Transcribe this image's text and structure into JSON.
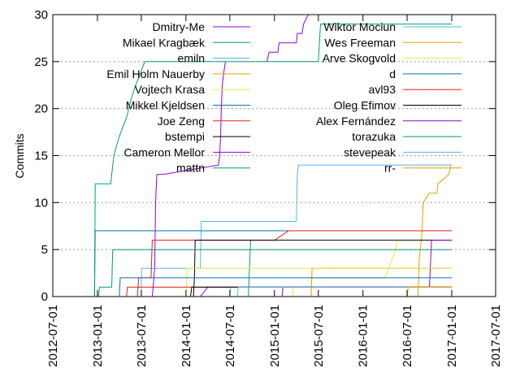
{
  "chart_data": {
    "type": "line",
    "title": "",
    "xlabel": "",
    "ylabel": "Commits",
    "xlim": [
      "2012-07-01",
      "2017-07-01"
    ],
    "ylim": [
      0,
      30
    ],
    "x_ticks": [
      "2012-07-01",
      "2013-01-01",
      "2013-07-01",
      "2014-01-01",
      "2014-07-01",
      "2015-01-01",
      "2015-07-01",
      "2016-01-01",
      "2016-07-01",
      "2017-01-01",
      "2017-07-01"
    ],
    "y_ticks": [
      0,
      5,
      10,
      15,
      20,
      25,
      30
    ],
    "grid": "y dotted",
    "legend_position": "top (two columns)",
    "series": [
      {
        "name": "Dmitry-Me",
        "color": "#9400d3",
        "points": [
          [
            "2013-08-15",
            0
          ],
          [
            "2013-08-25",
            3
          ],
          [
            "2013-08-29",
            10
          ],
          [
            "2013-09-03",
            13
          ],
          [
            "2013-09-30",
            13
          ],
          [
            "2014-05-15",
            14
          ],
          [
            "2014-05-20",
            15
          ],
          [
            "2014-05-24",
            17
          ],
          [
            "2014-05-27",
            20
          ],
          [
            "2014-05-30",
            22
          ],
          [
            "2014-06-02",
            23
          ],
          [
            "2014-06-07",
            24
          ],
          [
            "2014-06-13",
            25
          ]
        ]
      },
      {
        "name": "Mikael Kragbæk",
        "color": "#009e73",
        "points": [
          [
            "2014-09-15",
            0
          ],
          [
            "2014-09-25",
            6
          ]
        ]
      },
      {
        "name": "emiln",
        "color": "#56b4e9",
        "points": [
          [
            "2013-07-01",
            0
          ],
          [
            "2013-07-02",
            3
          ],
          [
            "2014-03-01",
            3
          ],
          [
            "2014-03-05",
            8
          ],
          [
            "2015-04-01",
            8
          ],
          [
            "2015-04-05",
            13
          ],
          [
            "2015-04-10",
            14
          ],
          [
            "2017-01-01",
            14
          ]
        ]
      },
      {
        "name": "Emil Holm Nauerby",
        "color": "#e69f00",
        "points": [
          [
            "2016-08-15",
            0
          ],
          [
            "2016-08-20",
            4
          ],
          [
            "2016-09-01",
            7
          ],
          [
            "2016-09-05",
            10
          ],
          [
            "2016-09-30",
            11
          ],
          [
            "2016-11-01",
            11
          ],
          [
            "2016-11-05",
            12
          ],
          [
            "2016-12-20",
            13
          ],
          [
            "2016-12-28",
            14
          ]
        ]
      },
      {
        "name": "Vojtech Krasa",
        "color": "#f0e442",
        "points": [
          [
            "2015-03-15",
            0
          ],
          [
            "2015-03-20",
            1
          ],
          [
            "2015-06-01",
            1
          ],
          [
            "2015-06-05",
            2
          ],
          [
            "2016-04-01",
            2
          ],
          [
            "2016-05-15",
            5
          ],
          [
            "2016-05-20",
            6
          ],
          [
            "2017-01-01",
            6
          ]
        ]
      },
      {
        "name": "Mikkel Kjeldsen",
        "color": "#0072b2",
        "points": [
          [
            "2012-12-20",
            0
          ],
          [
            "2012-12-23",
            7
          ],
          [
            "2017-01-01",
            7
          ]
        ]
      },
      {
        "name": "Joe Zeng",
        "color": "#e51e10",
        "points": [
          [
            "2013-06-15",
            0
          ],
          [
            "2013-06-20",
            2
          ],
          [
            "2013-08-10",
            2
          ],
          [
            "2013-08-15",
            6
          ],
          [
            "2015-01-01",
            6
          ],
          [
            "2015-03-01",
            7
          ],
          [
            "2017-01-01",
            7
          ]
        ]
      },
      {
        "name": "bstempi",
        "color": "#000000",
        "points": [
          [
            "2014-02-01",
            0
          ],
          [
            "2014-02-05",
            2
          ],
          [
            "2014-02-08",
            6
          ],
          [
            "2017-01-01",
            6
          ]
        ]
      },
      {
        "name": "Cameron Mellor",
        "color": "#9400d3",
        "points": [
          [
            "2014-03-01",
            0
          ],
          [
            "2014-04-01",
            1
          ],
          [
            "2016-10-01",
            1
          ],
          [
            "2016-10-10",
            6
          ],
          [
            "2017-01-01",
            6
          ]
        ]
      },
      {
        "name": "mattn",
        "color": "#009e73",
        "points": [
          [
            "2013-01-05",
            0
          ],
          [
            "2013-01-10",
            1
          ],
          [
            "2013-03-01",
            1
          ],
          [
            "2013-03-05",
            5
          ],
          [
            "2017-01-01",
            5
          ]
        ]
      },
      {
        "name": "Wiktor Mociun",
        "color": "#56b4e9",
        "points": [
          [
            "2014-07-01",
            0
          ],
          [
            "2014-07-05",
            1
          ],
          [
            "2017-01-01",
            1
          ]
        ]
      },
      {
        "name": "Wes Freeman",
        "color": "#e69f00",
        "points": [
          [
            "2015-06-01",
            0
          ],
          [
            "2015-06-05",
            3
          ],
          [
            "2017-01-01",
            3
          ]
        ]
      },
      {
        "name": "Arve Skogvold",
        "color": "#f0e442",
        "points": [
          [
            "2014-01-01",
            0
          ],
          [
            "2014-01-05",
            3
          ],
          [
            "2017-01-01",
            3
          ]
        ]
      },
      {
        "name": "d",
        "color": "#0072b2",
        "points": [
          [
            "2013-04-01",
            0
          ],
          [
            "2013-04-05",
            2
          ],
          [
            "2017-01-01",
            2
          ]
        ]
      },
      {
        "name": "avl93",
        "color": "#e51e10",
        "points": [
          [
            "2013-05-01",
            0
          ],
          [
            "2013-05-05",
            1
          ],
          [
            "2017-01-01",
            1
          ]
        ]
      },
      {
        "name": "Oleg Efimov",
        "color": "#000000",
        "points": [
          [
            "2014-01-20",
            0
          ],
          [
            "2014-01-25",
            1
          ],
          [
            "2017-01-01",
            1
          ]
        ]
      },
      {
        "name": "Alex Fernández",
        "color": "#9400d3",
        "points": [
          [
            "2015-02-01",
            0
          ],
          [
            "2015-02-05",
            1
          ],
          [
            "2017-01-01",
            1
          ]
        ]
      },
      {
        "name": "torazuka",
        "color": "#009e73",
        "points": [
          [
            "2012-12-20",
            0
          ],
          [
            "2012-12-23",
            12
          ],
          [
            "2013-02-25",
            12
          ],
          [
            "2013-03-01",
            13
          ],
          [
            "2013-03-10",
            15
          ],
          [
            "2013-03-20",
            16
          ],
          [
            "2013-04-01",
            17
          ],
          [
            "2013-04-15",
            18
          ],
          [
            "2013-05-01",
            19
          ],
          [
            "2013-05-10",
            20
          ],
          [
            "2013-05-20",
            21
          ],
          [
            "2013-06-01",
            22
          ],
          [
            "2013-06-15",
            23
          ],
          [
            "2013-07-01",
            24
          ],
          [
            "2013-07-15",
            25
          ],
          [
            "2015-07-01",
            25
          ],
          [
            "2015-07-10",
            29
          ],
          [
            "2017-01-01",
            29
          ]
        ]
      },
      {
        "name": "stevepeak",
        "color": "#56b4e9",
        "points": [
          [
            "2014-08-01",
            0
          ],
          [
            "2014-08-05",
            1
          ],
          [
            "2017-01-01",
            1
          ]
        ]
      },
      {
        "name": "rr-",
        "color": "#e69f00",
        "points": [
          [
            "2016-07-01",
            0
          ],
          [
            "2016-07-05",
            1
          ],
          [
            "2017-01-01",
            1
          ]
        ]
      },
      {
        "name": "",
        "color": "#9400d3",
        "points": [
          [
            "2014-12-01",
            25
          ],
          [
            "2014-12-10",
            26
          ],
          [
            "2015-01-15",
            26
          ],
          [
            "2015-01-20",
            27
          ],
          [
            "2015-04-01",
            27
          ],
          [
            "2015-04-05",
            28
          ],
          [
            "2015-04-25",
            28
          ],
          [
            "2015-05-01",
            29
          ],
          [
            "2015-05-20",
            30
          ]
        ]
      }
    ]
  }
}
